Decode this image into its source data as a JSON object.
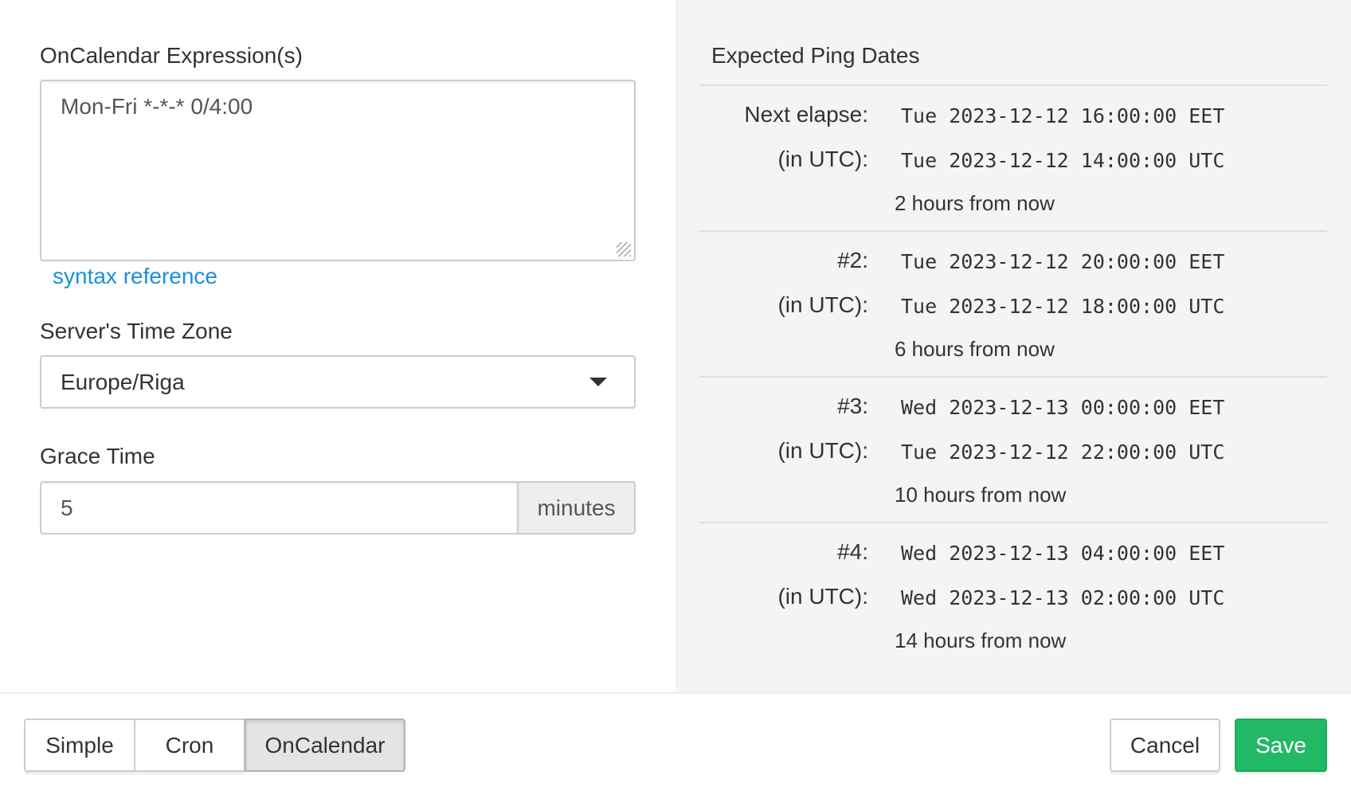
{
  "left": {
    "expression_label": "OnCalendar Expression(s)",
    "expression_value": "Mon-Fri *-*-* 0/4:00",
    "syntax_link": "syntax reference",
    "timezone_label": "Server's Time Zone",
    "timezone_value": "Europe/Riga",
    "grace_label": "Grace Time",
    "grace_value": "5",
    "grace_unit": "minutes"
  },
  "right": {
    "title": "Expected Ping Dates",
    "entries": [
      {
        "label": "Next elapse:",
        "local": "Tue 2023-12-12 16:00:00 EET",
        "utc_label": "(in UTC):",
        "utc": "Tue 2023-12-12 14:00:00 UTC",
        "relative": "2 hours from now"
      },
      {
        "label": "#2:",
        "local": "Tue 2023-12-12 20:00:00 EET",
        "utc_label": "(in UTC):",
        "utc": "Tue 2023-12-12 18:00:00 UTC",
        "relative": "6 hours from now"
      },
      {
        "label": "#3:",
        "local": "Wed 2023-12-13 00:00:00 EET",
        "utc_label": "(in UTC):",
        "utc": "Tue 2023-12-12 22:00:00 UTC",
        "relative": "10 hours from now"
      },
      {
        "label": "#4:",
        "local": "Wed 2023-12-13 04:00:00 EET",
        "utc_label": "(in UTC):",
        "utc": "Wed 2023-12-13 02:00:00 UTC",
        "relative": "14 hours from now"
      }
    ]
  },
  "footer": {
    "modes": [
      "Simple",
      "Cron",
      "OnCalendar"
    ],
    "active_mode": "OnCalendar",
    "cancel": "Cancel",
    "save": "Save",
    "save_color": "#22b965"
  }
}
